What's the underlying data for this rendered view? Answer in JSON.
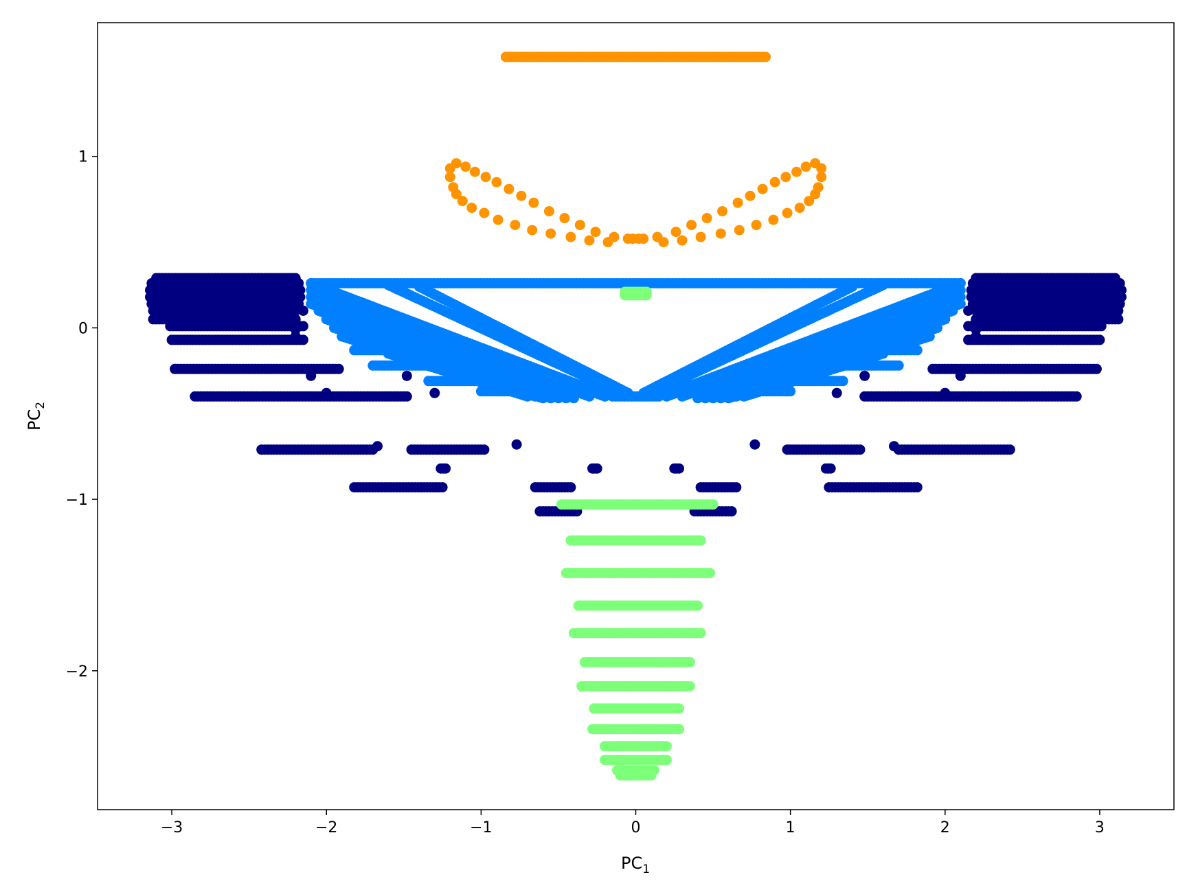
{
  "chart_data": {
    "type": "scatter",
    "title": "",
    "xlabel": "PC",
    "xlabel_sub": "1",
    "ylabel": "PC",
    "ylabel_sub": "2",
    "xlim": [
      -3.48,
      3.48
    ],
    "ylim": [
      -2.81,
      1.78
    ],
    "xticks": [
      -3,
      -2,
      -1,
      0,
      1,
      2,
      3
    ],
    "yticks": [
      -2,
      -1,
      0,
      1
    ],
    "xtick_labels": [
      "−3",
      "−2",
      "−1",
      "0",
      "1",
      "2",
      "3"
    ],
    "ytick_labels": [
      "−2",
      "−1",
      "0",
      "1"
    ],
    "grid": false,
    "legend": "none",
    "series": [
      {
        "color": "#000080",
        "segments": [
          {
            "y": 0.29,
            "x": [
              -3.1,
              -2.2
            ]
          },
          {
            "y": 0.26,
            "x": [
              -3.13,
              -2.18
            ]
          },
          {
            "y": 0.22,
            "x": [
              -3.14,
              -2.17
            ]
          },
          {
            "y": 0.18,
            "x": [
              -3.14,
              -2.17
            ]
          },
          {
            "y": 0.14,
            "x": [
              -3.13,
              -2.18
            ]
          },
          {
            "y": 0.1,
            "x": [
              -3.12,
              -2.2
            ]
          },
          {
            "y": 0.05,
            "x": [
              -3.12,
              -2.2
            ]
          },
          {
            "y": 0.29,
            "x": [
              2.2,
              3.1
            ]
          },
          {
            "y": 0.26,
            "x": [
              2.18,
              3.13
            ]
          },
          {
            "y": 0.22,
            "x": [
              2.17,
              3.14
            ]
          },
          {
            "y": 0.18,
            "x": [
              2.17,
              3.14
            ]
          },
          {
            "y": 0.14,
            "x": [
              2.18,
              3.13
            ]
          },
          {
            "y": 0.1,
            "x": [
              2.2,
              3.12
            ]
          },
          {
            "y": 0.05,
            "x": [
              2.2,
              3.12
            ]
          },
          {
            "y": 0.01,
            "x": [
              -3.01,
              -2.15
            ]
          },
          {
            "y": 0.01,
            "x": [
              2.15,
              3.01
            ]
          },
          {
            "y": -0.07,
            "x": [
              -3.0,
              -2.15
            ]
          },
          {
            "y": -0.07,
            "x": [
              2.15,
              3.0
            ]
          },
          {
            "y": -0.24,
            "x": [
              -2.98,
              -1.92
            ]
          },
          {
            "y": -0.24,
            "x": [
              1.92,
              2.98
            ]
          },
          {
            "y": -0.4,
            "x": [
              -2.85,
              -1.48
            ]
          },
          {
            "y": -0.4,
            "x": [
              1.48,
              2.85
            ]
          },
          {
            "y": -0.71,
            "x": [
              -2.42,
              -1.7
            ]
          },
          {
            "y": -0.71,
            "x": [
              -1.45,
              -0.98
            ]
          },
          {
            "y": -0.71,
            "x": [
              0.98,
              1.45
            ]
          },
          {
            "y": -0.71,
            "x": [
              1.7,
              2.42
            ]
          },
          {
            "y": -0.93,
            "x": [
              -1.82,
              -1.25
            ]
          },
          {
            "y": -0.93,
            "x": [
              1.25,
              1.82
            ]
          },
          {
            "y": -0.93,
            "x": [
              -0.65,
              -0.42
            ]
          },
          {
            "y": -0.93,
            "x": [
              0.42,
              0.65
            ]
          },
          {
            "y": -1.07,
            "x": [
              -0.62,
              -0.38
            ]
          },
          {
            "y": -1.07,
            "x": [
              0.38,
              0.62
            ]
          },
          {
            "y": -0.82,
            "x": [
              -1.26,
              -1.23
            ]
          },
          {
            "y": -0.82,
            "x": [
              1.23,
              1.26
            ]
          },
          {
            "y": -0.82,
            "x": [
              -0.28,
              -0.25
            ]
          },
          {
            "y": -0.82,
            "x": [
              0.25,
              0.28
            ]
          }
        ],
        "points": [
          [
            -2.1,
            -0.28
          ],
          [
            2.1,
            -0.28
          ],
          [
            -1.48,
            -0.28
          ],
          [
            1.48,
            -0.28
          ],
          [
            -2.0,
            -0.38
          ],
          [
            2.0,
            -0.38
          ],
          [
            -1.3,
            -0.38
          ],
          [
            1.3,
            -0.38
          ],
          [
            -1.67,
            -0.69
          ],
          [
            1.67,
            -0.69
          ],
          [
            -0.77,
            -0.68
          ],
          [
            0.77,
            -0.68
          ],
          [
            -2.2,
            -0.05
          ],
          [
            2.2,
            -0.05
          ],
          [
            -2.2,
            -0.01
          ],
          [
            2.2,
            -0.01
          ],
          [
            -1.7,
            0.0
          ],
          [
            1.7,
            0.0
          ],
          [
            -2.15,
            0.1
          ],
          [
            2.15,
            0.1
          ]
        ]
      },
      {
        "color": "#0080ff",
        "arms": [
          {
            "start": [
              -2.1,
              0.26
            ],
            "end": [
              -0.2,
              -0.39
            ]
          },
          {
            "start": [
              -2.1,
              0.22
            ],
            "end": [
              -0.2,
              -0.4
            ]
          },
          {
            "start": [
              -2.1,
              0.18
            ],
            "end": [
              -0.3,
              -0.4
            ]
          },
          {
            "start": [
              -2.1,
              0.14
            ],
            "end": [
              -0.4,
              -0.41
            ]
          },
          {
            "start": [
              -2.05,
              0.1
            ],
            "end": [
              -0.45,
              -0.41
            ]
          },
          {
            "start": [
              -2.0,
              0.05
            ],
            "end": [
              -0.5,
              -0.41
            ]
          },
          {
            "start": [
              -1.95,
              0.0
            ],
            "end": [
              -0.55,
              -0.41
            ]
          },
          {
            "start": [
              -1.9,
              -0.05
            ],
            "end": [
              -0.6,
              -0.41
            ]
          },
          {
            "start": [
              -1.7,
              -0.1
            ],
            "end": [
              -0.65,
              -0.4
            ]
          },
          {
            "start": [
              -1.6,
              -0.15
            ],
            "end": [
              -0.7,
              -0.4
            ]
          },
          {
            "start": [
              -1.6,
              0.25
            ],
            "end": [
              -0.1,
              -0.38
            ]
          },
          {
            "start": [
              -1.4,
              0.24
            ],
            "end": [
              -0.05,
              -0.38
            ]
          },
          {
            "start": [
              -2.1,
              0.26
            ],
            "end": [
              2.1,
              0.26
            ]
          },
          {
            "start": [
              2.1,
              0.26
            ],
            "end": [
              0.2,
              -0.39
            ]
          },
          {
            "start": [
              2.1,
              0.22
            ],
            "end": [
              0.2,
              -0.4
            ]
          },
          {
            "start": [
              2.1,
              0.18
            ],
            "end": [
              0.3,
              -0.4
            ]
          },
          {
            "start": [
              2.1,
              0.14
            ],
            "end": [
              0.4,
              -0.41
            ]
          },
          {
            "start": [
              2.05,
              0.1
            ],
            "end": [
              0.45,
              -0.41
            ]
          },
          {
            "start": [
              2.0,
              0.05
            ],
            "end": [
              0.5,
              -0.41
            ]
          },
          {
            "start": [
              1.95,
              0.0
            ],
            "end": [
              0.55,
              -0.41
            ]
          },
          {
            "start": [
              1.9,
              -0.05
            ],
            "end": [
              0.6,
              -0.41
            ]
          },
          {
            "start": [
              1.7,
              -0.1
            ],
            "end": [
              0.65,
              -0.4
            ]
          },
          {
            "start": [
              1.6,
              -0.15
            ],
            "end": [
              0.7,
              -0.4
            ]
          },
          {
            "start": [
              1.6,
              0.25
            ],
            "end": [
              0.1,
              -0.38
            ]
          },
          {
            "start": [
              1.4,
              0.24
            ],
            "end": [
              0.05,
              -0.38
            ]
          }
        ],
        "segments": [
          {
            "y": -0.13,
            "x": [
              -1.82,
              -1.1
            ]
          },
          {
            "y": -0.13,
            "x": [
              1.1,
              1.82
            ]
          },
          {
            "y": -0.22,
            "x": [
              -1.7,
              -0.95
            ]
          },
          {
            "y": -0.22,
            "x": [
              0.95,
              1.7
            ]
          },
          {
            "y": -0.31,
            "x": [
              -1.34,
              -0.75
            ]
          },
          {
            "y": -0.31,
            "x": [
              0.75,
              1.34
            ]
          },
          {
            "y": -0.37,
            "x": [
              -1.0,
              -0.55
            ]
          },
          {
            "y": -0.37,
            "x": [
              0.55,
              1.0
            ]
          },
          {
            "y": -0.4,
            "x": [
              -0.15,
              0.15
            ]
          }
        ],
        "points": []
      },
      {
        "color": "#ff9400",
        "segments": [
          {
            "y": 1.58,
            "x": [
              -0.84,
              0.84
            ]
          }
        ],
        "points": [
          [
            -1.2,
            0.93
          ],
          [
            -1.16,
            0.96
          ],
          [
            -1.1,
            0.94
          ],
          [
            -1.04,
            0.91
          ],
          [
            -0.97,
            0.88
          ],
          [
            -0.9,
            0.85
          ],
          [
            -0.82,
            0.81
          ],
          [
            -0.74,
            0.77
          ],
          [
            -0.66,
            0.73
          ],
          [
            -0.56,
            0.68
          ],
          [
            -0.46,
            0.64
          ],
          [
            -0.36,
            0.6
          ],
          [
            -0.26,
            0.56
          ],
          [
            -0.14,
            0.53
          ],
          [
            -0.02,
            0.52
          ],
          [
            -1.2,
            0.88
          ],
          [
            -1.18,
            0.82
          ],
          [
            -1.16,
            0.78
          ],
          [
            -1.12,
            0.74
          ],
          [
            -1.06,
            0.7
          ],
          [
            -0.98,
            0.67
          ],
          [
            -0.89,
            0.63
          ],
          [
            -0.78,
            0.6
          ],
          [
            -0.67,
            0.57
          ],
          [
            -0.55,
            0.55
          ],
          [
            -0.42,
            0.53
          ],
          [
            -0.3,
            0.51
          ],
          [
            -0.18,
            0.5
          ],
          [
            -0.05,
            0.52
          ],
          [
            1.2,
            0.93
          ],
          [
            1.16,
            0.96
          ],
          [
            1.1,
            0.94
          ],
          [
            1.04,
            0.91
          ],
          [
            0.97,
            0.88
          ],
          [
            0.9,
            0.85
          ],
          [
            0.82,
            0.81
          ],
          [
            0.74,
            0.77
          ],
          [
            0.66,
            0.73
          ],
          [
            0.56,
            0.68
          ],
          [
            0.46,
            0.64
          ],
          [
            0.36,
            0.6
          ],
          [
            0.26,
            0.56
          ],
          [
            0.14,
            0.53
          ],
          [
            0.02,
            0.52
          ],
          [
            1.2,
            0.88
          ],
          [
            1.18,
            0.82
          ],
          [
            1.16,
            0.78
          ],
          [
            1.12,
            0.74
          ],
          [
            1.06,
            0.7
          ],
          [
            0.98,
            0.67
          ],
          [
            0.89,
            0.63
          ],
          [
            0.78,
            0.6
          ],
          [
            0.67,
            0.57
          ],
          [
            0.55,
            0.55
          ],
          [
            0.42,
            0.53
          ],
          [
            0.3,
            0.51
          ],
          [
            0.18,
            0.5
          ],
          [
            0.05,
            0.52
          ]
        ]
      },
      {
        "color": "#7dff7a",
        "segments": [
          {
            "y": 0.21,
            "x": [
              -0.07,
              0.07
            ]
          },
          {
            "y": 0.19,
            "x": [
              -0.07,
              0.07
            ]
          },
          {
            "y": -1.03,
            "x": [
              -0.48,
              0.5
            ]
          },
          {
            "y": -1.24,
            "x": [
              -0.42,
              0.42
            ]
          },
          {
            "y": -1.43,
            "x": [
              -0.45,
              0.48
            ]
          },
          {
            "y": -1.62,
            "x": [
              -0.37,
              0.4
            ]
          },
          {
            "y": -1.78,
            "x": [
              -0.4,
              0.42
            ]
          },
          {
            "y": -1.95,
            "x": [
              -0.33,
              0.35
            ]
          },
          {
            "y": -2.09,
            "x": [
              -0.35,
              0.35
            ]
          },
          {
            "y": -2.22,
            "x": [
              -0.27,
              0.28
            ]
          },
          {
            "y": -2.34,
            "x": [
              -0.28,
              0.28
            ]
          },
          {
            "y": -2.44,
            "x": [
              -0.2,
              0.2
            ]
          },
          {
            "y": -2.52,
            "x": [
              -0.2,
              0.2
            ]
          },
          {
            "y": -2.58,
            "x": [
              -0.12,
              0.12
            ]
          },
          {
            "y": -2.61,
            "x": [
              -0.1,
              0.1
            ]
          }
        ],
        "points": []
      }
    ]
  }
}
